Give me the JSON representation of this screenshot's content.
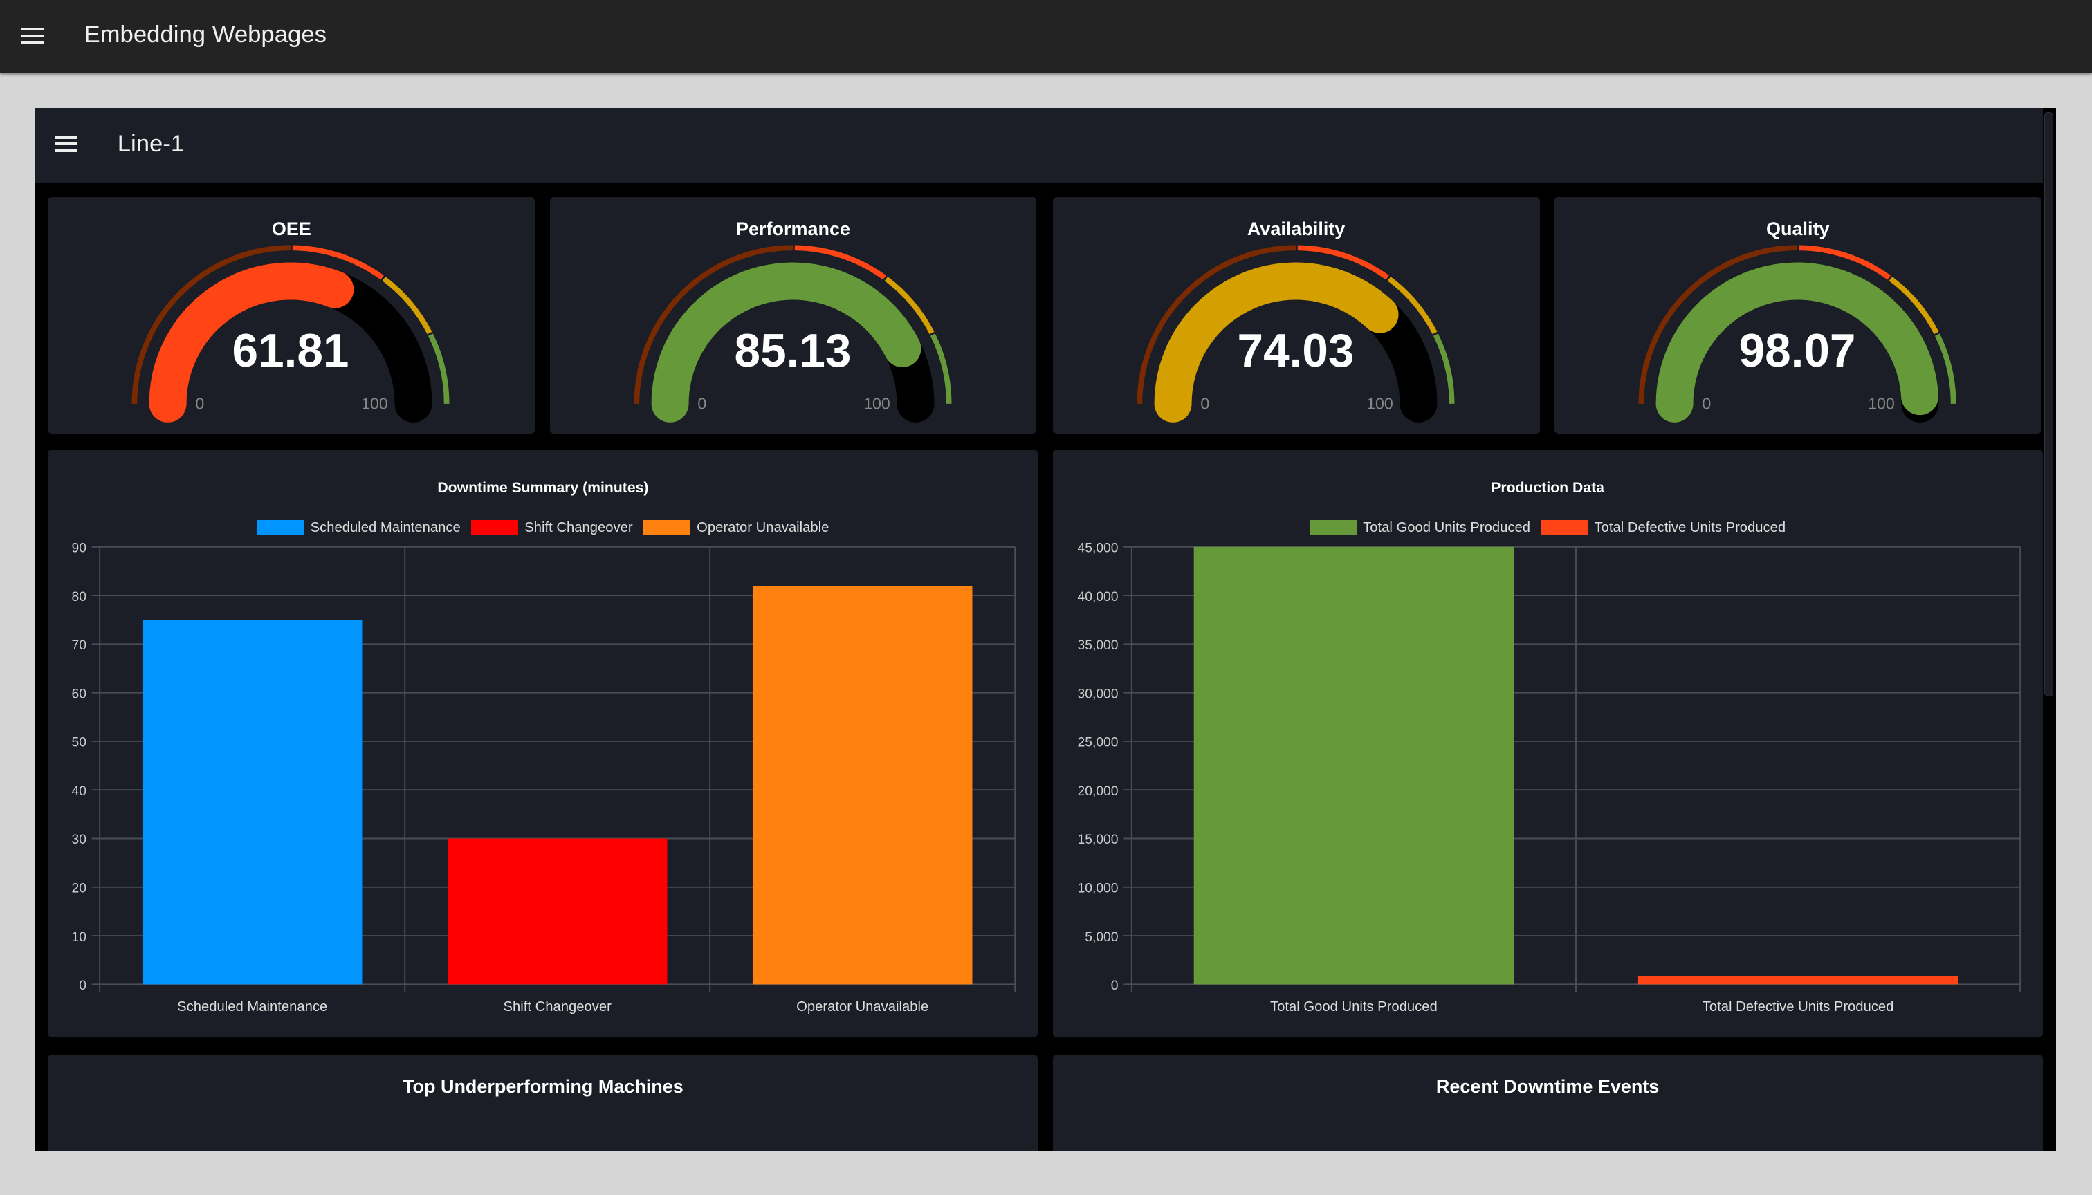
{
  "app": {
    "title": "Embedding Webpages",
    "menu_icon": "hamburger-menu-icon"
  },
  "page": {
    "title": "Line-1",
    "menu_icon": "hamburger-menu-icon"
  },
  "gauges": [
    {
      "title": "OEE",
      "value": "61.81",
      "fraction": 0.6181,
      "min": "0",
      "max": "100",
      "color": "#ff4515"
    },
    {
      "title": "Performance",
      "value": "85.13",
      "fraction": 0.8513,
      "min": "0",
      "max": "100",
      "color": "#65993a"
    },
    {
      "title": "Availability",
      "value": "74.03",
      "fraction": 0.7403,
      "min": "0",
      "max": "100",
      "color": "#d49f00"
    },
    {
      "title": "Quality",
      "value": "98.07",
      "fraction": 0.9807,
      "min": "0",
      "max": "100",
      "color": "#65993a"
    }
  ],
  "gauge_bands": [
    {
      "from": 0,
      "to": 50,
      "color": "#7a2a00"
    },
    {
      "from": 50,
      "to": 70,
      "color": "#ff4515"
    },
    {
      "from": 70,
      "to": 85,
      "color": "#d49f00"
    },
    {
      "from": 85,
      "to": 100,
      "color": "#65993a"
    }
  ],
  "chart_data": [
    {
      "type": "bar",
      "title": "Downtime Summary (minutes)",
      "legend_position": "top",
      "grid": true,
      "categories": [
        "Scheduled Maintenance",
        "Shift Changeover",
        "Operator Unavailable"
      ],
      "values": [
        75,
        30,
        82
      ],
      "colors": [
        "#0095ff",
        "#ff0000",
        "#ff8210"
      ],
      "legend": [
        "Scheduled Maintenance",
        "Shift Changeover",
        "Operator Unavailable"
      ],
      "ylim": [
        0,
        90
      ],
      "yticks": [
        "0",
        "10",
        "20",
        "30",
        "40",
        "50",
        "60",
        "70",
        "80",
        "90"
      ]
    },
    {
      "type": "bar",
      "title": "Production Data",
      "legend_position": "top",
      "grid": true,
      "categories": [
        "Total Good Units Produced",
        "Total Defective Units Produced"
      ],
      "values": [
        45000,
        850
      ],
      "colors": [
        "#65993a",
        "#ff4515"
      ],
      "legend": [
        "Total Good Units Produced",
        "Total Defective Units Produced"
      ],
      "ylim": [
        0,
        45000
      ],
      "yticks": [
        "0",
        "5,000",
        "10,000",
        "15,000",
        "20,000",
        "25,000",
        "30,000",
        "35,000",
        "40,000",
        "45,000"
      ]
    }
  ],
  "panels": {
    "machines_title": "Top Underperforming Machines",
    "events_title": "Recent Downtime Events"
  }
}
